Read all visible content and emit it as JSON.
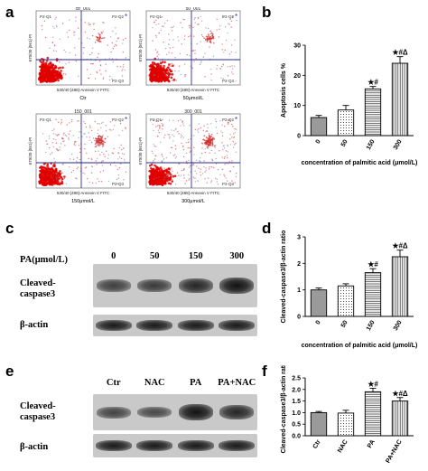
{
  "panels": {
    "a": "a",
    "b": "b",
    "c": "c",
    "d": "d",
    "e": "e",
    "f": "f"
  },
  "flow": {
    "x_axis_label": "530/40 [488]-Annexin V FITC",
    "y_axis_label": "670/30 [561]-PI",
    "quadrants": [
      "P2-Q1",
      "P2-Q2",
      "P2-Q3"
    ],
    "plots": [
      {
        "file": "ctr_001",
        "caption": "Ctr"
      },
      {
        "file": "50_001",
        "caption": "50μmol/L"
      },
      {
        "file": "150_001",
        "caption": "150μmol/L"
      },
      {
        "file": "300_001",
        "caption": "300μmol/L"
      }
    ]
  },
  "blot_c": {
    "header_label": "PA(μmol/L)",
    "lanes": [
      "0",
      "50",
      "150",
      "300"
    ],
    "rows": [
      "Cleaved-\ncaspase3",
      "β-actin"
    ],
    "target_intensity": [
      0.55,
      0.6,
      0.8,
      1.0
    ]
  },
  "blot_e": {
    "lanes": [
      "Ctr",
      "NAC",
      "PA",
      "PA+NAC"
    ],
    "rows": [
      "Cleaved-\ncaspase3",
      "β-actin"
    ],
    "target_intensity": [
      0.5,
      0.45,
      1.0,
      0.8
    ]
  },
  "chart_data": [
    {
      "id": "b",
      "type": "bar",
      "categories": [
        "0",
        "50",
        "150",
        "300"
      ],
      "values": [
        6,
        8.5,
        15.5,
        24
      ],
      "errors": [
        0.7,
        1.5,
        0.8,
        2.2
      ],
      "significance": [
        "",
        "",
        "★#",
        "★#Δ"
      ],
      "patterns": [
        "solid-gray",
        "dots",
        "hlines",
        "vlines"
      ],
      "xlabel": "concentration of palmitic acid (μmol/L)",
      "ylabel": "Apoptosis cells %",
      "ylim": [
        0,
        30
      ],
      "yticks": [
        0,
        10,
        20,
        30
      ]
    },
    {
      "id": "d",
      "type": "bar",
      "categories": [
        "0",
        "50",
        "150",
        "300"
      ],
      "values": [
        1.0,
        1.15,
        1.65,
        2.25
      ],
      "errors": [
        0.07,
        0.08,
        0.15,
        0.25
      ],
      "significance": [
        "",
        "",
        "★#",
        "★#Δ"
      ],
      "patterns": [
        "solid-gray",
        "dots",
        "hlines",
        "vlines"
      ],
      "xlabel": "concentration of palmitic acid (μmol/L)",
      "ylabel": "Cleaved-caspase3/β-actin ratio",
      "ylim": [
        0,
        3
      ],
      "yticks": [
        0,
        1,
        2,
        3
      ]
    },
    {
      "id": "f",
      "type": "bar",
      "categories": [
        "Ctr",
        "NAC",
        "PA",
        "PA+NAC"
      ],
      "values": [
        1.0,
        0.98,
        1.9,
        1.5
      ],
      "errors": [
        0.05,
        0.12,
        0.15,
        0.15
      ],
      "significance": [
        "",
        "",
        "★#",
        "★#Δ"
      ],
      "patterns": [
        "solid-gray",
        "dots",
        "hlines",
        "vlines"
      ],
      "xlabel": "",
      "ylabel": "Cleaved-caspase3/β-actin ratio",
      "ylim": [
        0,
        2.5
      ],
      "yticks": [
        0,
        0.5,
        1.0,
        1.5,
        2.0,
        2.5
      ]
    }
  ]
}
